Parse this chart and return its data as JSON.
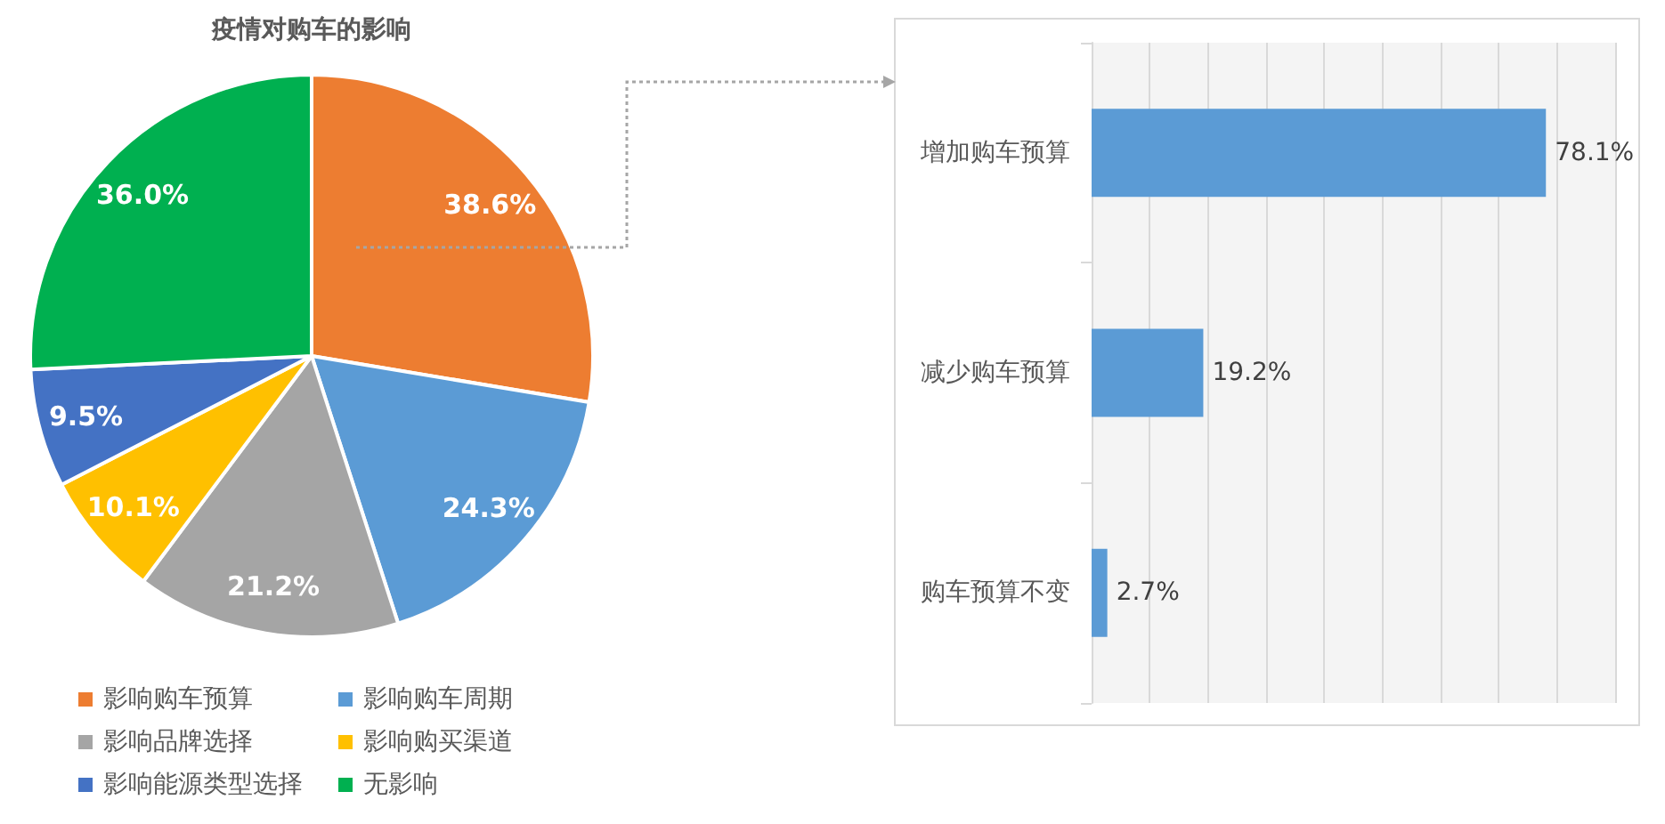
{
  "chart_data": [
    {
      "type": "pie",
      "title": "疫情对购车的影响",
      "categories": [
        "影响购车预算",
        "影响购车周期",
        "影响品牌选择",
        "影响购买渠道",
        "影响能源类型选择",
        "无影响"
      ],
      "values": [
        38.6,
        24.3,
        21.2,
        10.1,
        9.5,
        36.0
      ],
      "colors": [
        "#ed7d31",
        "#5b9bd5",
        "#a5a5a5",
        "#ffc000",
        "#4472c4",
        "#00b050"
      ],
      "value_labels": [
        "38.6%",
        "24.3%",
        "21.2%",
        "10.1%",
        "9.5%",
        "36.0%"
      ],
      "legend": "bottom"
    },
    {
      "type": "bar",
      "orientation": "horizontal",
      "categories": [
        "增加购车预算",
        "减少购车预算",
        "购车预算不变"
      ],
      "values": [
        78.1,
        19.2,
        2.7
      ],
      "color": "#5b9bd5",
      "value_labels": [
        "78.1%",
        "19.2%",
        "2.7%"
      ],
      "xlim": [
        0,
        90
      ],
      "xticks": [
        {
          "value": 0,
          "label": null
        },
        {
          "value": 10,
          "label": null
        },
        {
          "value": 20,
          "label": null
        },
        {
          "value": 30,
          "label": null
        },
        {
          "value": 40,
          "label": null
        },
        {
          "value": 50,
          "label": null
        },
        {
          "value": 60,
          "label": null
        },
        {
          "value": 70,
          "label": null
        },
        {
          "value": 80,
          "label": null
        },
        {
          "value": 90,
          "label": null
        }
      ],
      "grid": "x",
      "tick_labels": "y"
    }
  ]
}
